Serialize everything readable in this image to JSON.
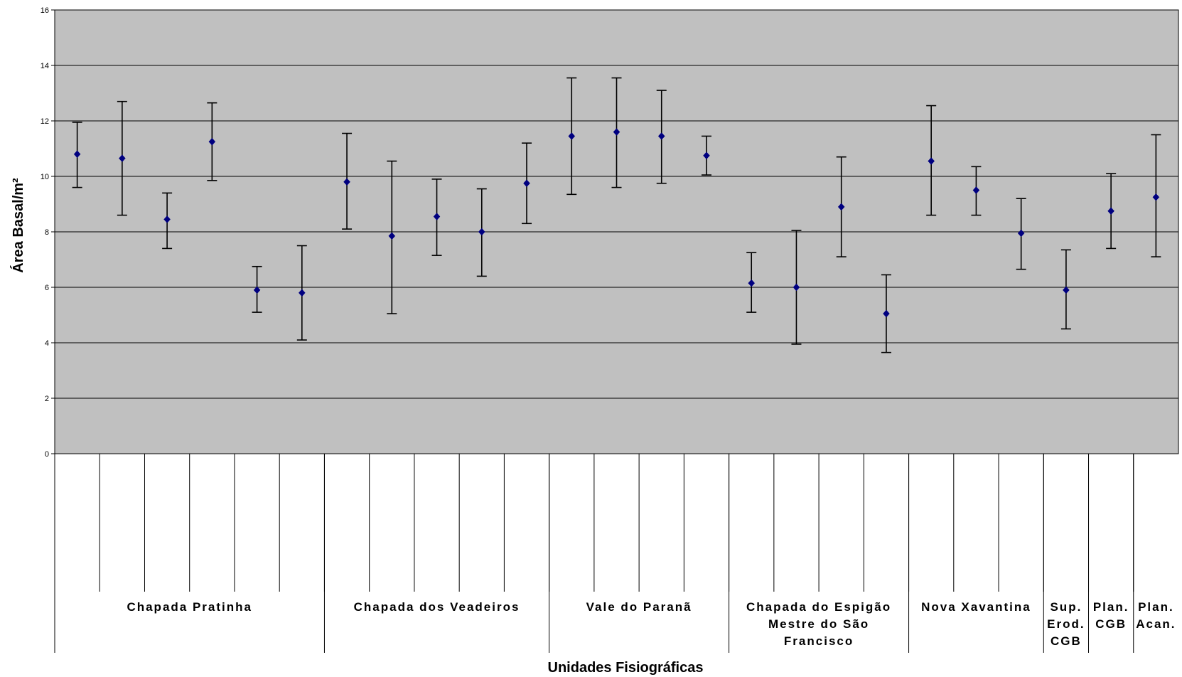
{
  "chart_data": {
    "type": "scatter",
    "title": "",
    "xlabel": "Unidades Fisiográficas",
    "ylabel": "Área Basal/m²",
    "ylim": [
      0,
      16
    ],
    "yticks": [
      0,
      2,
      4,
      6,
      8,
      10,
      12,
      14,
      16
    ],
    "grid": true,
    "plot_background": "#c0c0c0",
    "marker_color": "#000080",
    "series": [
      {
        "values": [
          10.8,
          10.65,
          8.45,
          11.25,
          5.9,
          5.8,
          9.8,
          7.85,
          8.55,
          8.0,
          9.75,
          11.45,
          11.6,
          11.45,
          10.75,
          6.15,
          6.0,
          8.9,
          5.05,
          10.55,
          9.5,
          7.95,
          5.9,
          8.75,
          9.25
        ],
        "error_low": [
          9.6,
          8.6,
          7.4,
          9.85,
          5.1,
          4.1,
          8.1,
          5.05,
          7.15,
          6.4,
          8.3,
          9.35,
          9.6,
          9.75,
          10.05,
          5.1,
          3.95,
          7.1,
          3.65,
          8.6,
          8.6,
          6.65,
          4.5,
          7.4,
          7.1
        ],
        "error_high": [
          11.95,
          12.7,
          9.4,
          12.65,
          6.75,
          7.5,
          11.55,
          10.55,
          9.9,
          9.55,
          11.2,
          13.55,
          13.55,
          13.1,
          11.45,
          7.25,
          8.05,
          10.7,
          6.45,
          12.55,
          10.35,
          9.2,
          7.35,
          10.1,
          11.5
        ]
      }
    ],
    "groups": [
      {
        "label_lines": [
          "Chapada Pratinha"
        ],
        "count": 6
      },
      {
        "label_lines": [
          "Chapada dos Veadeiros"
        ],
        "count": 5
      },
      {
        "label_lines": [
          "Vale do Paranã"
        ],
        "count": 4
      },
      {
        "label_lines": [
          "Chapada do Espigão",
          "Mestre do São",
          "Francisco"
        ],
        "count": 4
      },
      {
        "label_lines": [
          "Nova Xavantina"
        ],
        "count": 3
      },
      {
        "label_lines": [
          "Sup.",
          "Erod.",
          "CGB"
        ],
        "count": 1
      },
      {
        "label_lines": [
          "Plan.",
          "CGB"
        ],
        "count": 1
      },
      {
        "label_lines": [
          "Plan.",
          "Acan."
        ],
        "count": 1
      }
    ]
  }
}
